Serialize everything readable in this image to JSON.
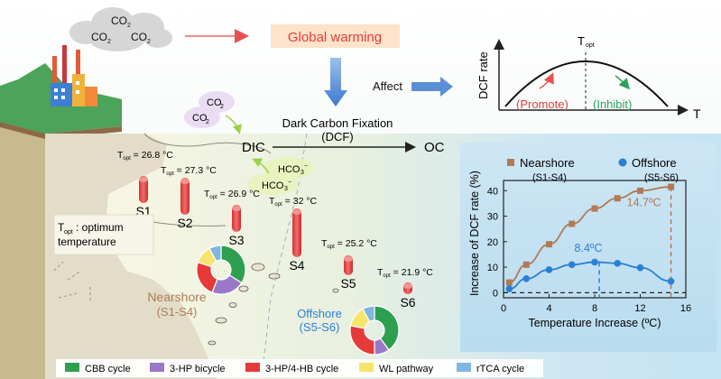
{
  "top": {
    "co2_cloud": [
      "CO",
      "CO",
      "CO"
    ],
    "global_warming": "Global warming",
    "affect": "Affect",
    "co2_bubbles": [
      "CO",
      "CO"
    ]
  },
  "dcf_curve": {
    "ylabel": "DCF rate",
    "xlabel": "T",
    "topt": "T",
    "promote": "(Promote)",
    "inhibit": "(Inhibit)"
  },
  "dcf_process": {
    "title": "Dark Carbon Fixation",
    "abbr": "(DCF)",
    "dic": "DIC",
    "oc": "OC",
    "hco3_a": "HCO",
    "hco3_b": "HCO"
  },
  "stations": [
    {
      "id": "S1",
      "topt_value": "= 26.8 °C",
      "height": 0.3
    },
    {
      "id": "S2",
      "topt_value": "= 27.3 °C",
      "height": 0.41
    },
    {
      "id": "S3",
      "topt_value": "= 26.9 °C",
      "height": 0.3
    },
    {
      "id": "S4",
      "topt_value": "= 32 °C",
      "height": 0.54
    },
    {
      "id": "S5",
      "topt_value": "= 25.2 °C",
      "height": 0.22
    },
    {
      "id": "S6",
      "topt_value": "= 21.9 °C",
      "height": 0.13
    }
  ],
  "map": {
    "legend_note_line1": ": optimum",
    "legend_note_line2": "temperature",
    "nearshore_label": "Nearshore",
    "nearshore_sub": "(S1-S4)",
    "offshore_label": "Offshore",
    "offshore_sub": "(S5-S6)"
  },
  "pies": {
    "nearshore": [
      {
        "name": "CBB cycle",
        "value": 0.34
      },
      {
        "name": "3-HP bicycle",
        "value": 0.22
      },
      {
        "name": "3-HP/4-HB cycle",
        "value": 0.24
      },
      {
        "name": "WL pathway",
        "value": 0.12
      },
      {
        "name": "rTCA cycle",
        "value": 0.08
      }
    ],
    "offshore": [
      {
        "name": "CBB cycle",
        "value": 0.4
      },
      {
        "name": "3-HP bicycle",
        "value": 0.1
      },
      {
        "name": "3-HP/4-HB cycle",
        "value": 0.28
      },
      {
        "name": "WL pathway",
        "value": 0.14
      },
      {
        "name": "rTCA cycle",
        "value": 0.08
      }
    ]
  },
  "legend": [
    {
      "label": "CBB cycle",
      "color": "#2e9e4f"
    },
    {
      "label": "3-HP bicycle",
      "color": "#9a78c8"
    },
    {
      "label": "3-HP/4-HB cycle",
      "color": "#e53a3a"
    },
    {
      "label": "WL pathway",
      "color": "#f7e46a"
    },
    {
      "label": "rTCA cycle",
      "color": "#7fb6e2"
    }
  ],
  "chart_data": {
    "type": "line",
    "ylabel": "Increase of DCF rate (%)",
    "xlabel": "Temperature Increase (ºC)",
    "xlim": [
      0,
      16
    ],
    "ylim": [
      -2,
      44
    ],
    "xticks": [
      0,
      4,
      8,
      12,
      16
    ],
    "yticks": [
      0,
      10,
      20,
      30,
      40
    ],
    "series": [
      {
        "name": "Nearshore",
        "sub": "(S1-S4)",
        "color": "#b07a55",
        "x": [
          0.5,
          2,
          4,
          6,
          8,
          10,
          12,
          14.7
        ],
        "y": [
          4,
          11,
          19,
          27,
          33,
          37,
          40,
          41.5
        ],
        "topt_label": "14.7ºC",
        "topt_x": 14.7
      },
      {
        "name": "Offshore",
        "sub": "(S5-S6)",
        "color": "#2a7fd6",
        "x": [
          0.5,
          2,
          4,
          6,
          8,
          10,
          12,
          14.7
        ],
        "y": [
          1.5,
          5.5,
          9,
          11,
          12,
          11.5,
          9.8,
          4.5
        ],
        "topt_label": "8.4ºC",
        "topt_x": 8.4
      }
    ]
  }
}
